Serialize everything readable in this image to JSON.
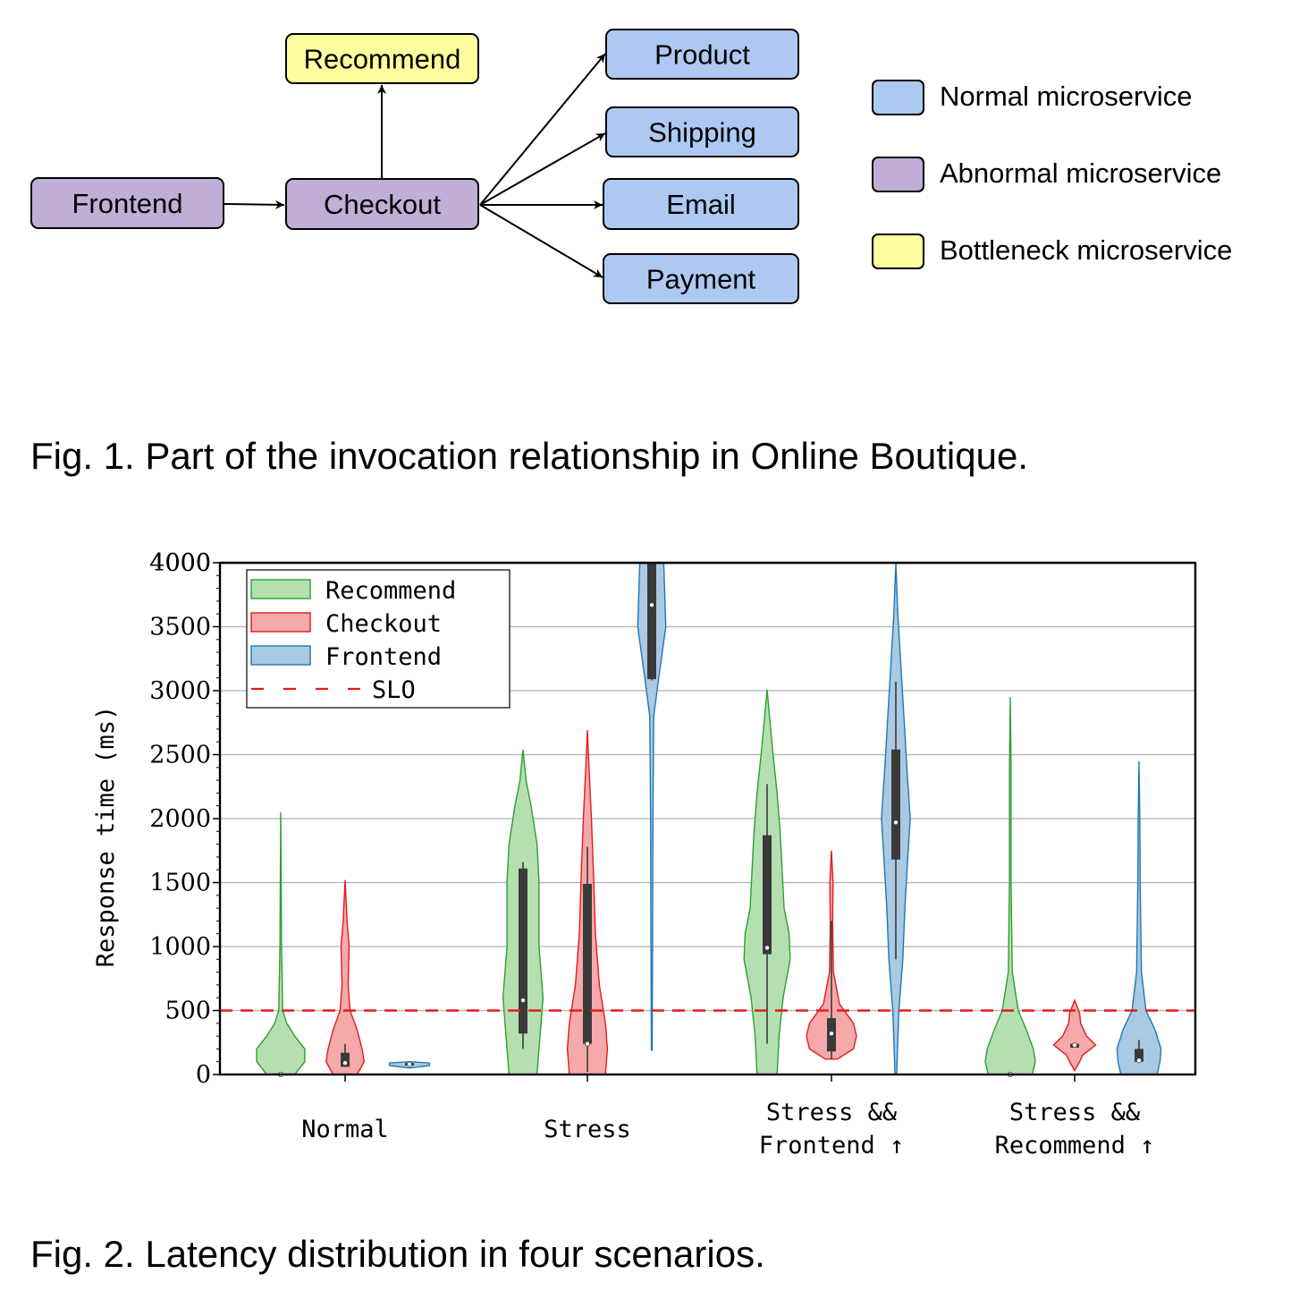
{
  "figure1": {
    "nodes": [
      {
        "id": "frontend",
        "label": "Frontend",
        "kind": "abnormal"
      },
      {
        "id": "checkout",
        "label": "Checkout",
        "kind": "abnormal"
      },
      {
        "id": "recommend",
        "label": "Recommend",
        "kind": "bottleneck"
      },
      {
        "id": "product",
        "label": "Product",
        "kind": "normal"
      },
      {
        "id": "shipping",
        "label": "Shipping",
        "kind": "normal"
      },
      {
        "id": "email",
        "label": "Email",
        "kind": "normal"
      },
      {
        "id": "payment",
        "label": "Payment",
        "kind": "normal"
      }
    ],
    "edges": [
      [
        "frontend",
        "checkout"
      ],
      [
        "checkout",
        "recommend"
      ],
      [
        "checkout",
        "product"
      ],
      [
        "checkout",
        "shipping"
      ],
      [
        "checkout",
        "email"
      ],
      [
        "checkout",
        "payment"
      ]
    ],
    "legend": [
      {
        "label": "Normal microservice",
        "kind": "normal"
      },
      {
        "label": "Abnormal microservice",
        "kind": "abnormal"
      },
      {
        "label": "Bottleneck microservice",
        "kind": "bottleneck"
      }
    ],
    "colors": {
      "normal": "#adc9f1",
      "abnormal": "#c0aed6",
      "bottleneck": "#fefe9e"
    },
    "caption": "Fig. 1. Part of the invocation relationship in Online Boutique."
  },
  "figure2": {
    "caption": "Fig. 2. Latency distribution in four scenarios.",
    "chart_data": {
      "type": "violin",
      "title": "",
      "xlabel": "",
      "ylabel": "Response time (ms)",
      "ylim": [
        0,
        4000
      ],
      "yticks": [
        0,
        500,
        1000,
        1500,
        2000,
        2500,
        3000,
        3500,
        4000
      ],
      "grid": "horizontal",
      "legend_position": "top-left",
      "categories": [
        "Normal",
        "Stress",
        "Stress && Frontend ↑",
        "Stress && Recommend ↑"
      ],
      "category_lines": [
        [
          "Normal"
        ],
        [
          "Stress"
        ],
        [
          "Stress &&",
          "Frontend ↑"
        ],
        [
          "Stress &&",
          "Recommend ↑"
        ]
      ],
      "slo": {
        "label": "SLO",
        "value": 500,
        "color": "#e41a1c"
      },
      "series": [
        {
          "name": "Recommend",
          "stroke": "#2ca02c",
          "fill": "#b5dfb0",
          "stats": [
            {
              "min": 0,
              "max": 2050,
              "q1": 0,
              "q3": 0,
              "median": 0,
              "density": [
                [
                  0,
                  70
                ],
                [
                  100,
                  120
                ],
                [
                  200,
                  120
                ],
                [
                  300,
                  70
                ],
                [
                  400,
                  30
                ],
                [
                  500,
                  10
                ],
                [
                  1000,
                  4
                ],
                [
                  2050,
                  0
                ]
              ]
            },
            {
              "min": 0,
              "max": 2540,
              "q1": 320,
              "q3": 1610,
              "median": 580,
              "wlo": 200,
              "whi": 1660,
              "density": [
                [
                  0,
                  70
                ],
                [
                  300,
                  85
                ],
                [
                  600,
                  100
                ],
                [
                  1000,
                  80
                ],
                [
                  1500,
                  80
                ],
                [
                  1800,
                  70
                ],
                [
                  2100,
                  40
                ],
                [
                  2300,
                  15
                ],
                [
                  2540,
                  0
                ]
              ]
            },
            {
              "min": 0,
              "max": 3010,
              "q1": 940,
              "q3": 1870,
              "median": 990,
              "wlo": 240,
              "whi": 2270,
              "density": [
                [
                  0,
                  50
                ],
                [
                  300,
                  60
                ],
                [
                  600,
                  80
                ],
                [
                  900,
                  115
                ],
                [
                  1100,
                  110
                ],
                [
                  1300,
                  85
                ],
                [
                  1600,
                  75
                ],
                [
                  1900,
                  65
                ],
                [
                  2200,
                  50
                ],
                [
                  2500,
                  30
                ],
                [
                  2800,
                  12
                ],
                [
                  3010,
                  0
                ]
              ]
            },
            {
              "min": 0,
              "max": 2950,
              "q1": 0,
              "q3": 0,
              "median": 0,
              "density": [
                [
                  0,
                  110
                ],
                [
                  100,
                  125
                ],
                [
                  200,
                  115
                ],
                [
                  350,
                  80
                ],
                [
                  500,
                  40
                ],
                [
                  800,
                  10
                ],
                [
                  1500,
                  4
                ],
                [
                  2400,
                  4
                ],
                [
                  2950,
                  0
                ]
              ]
            }
          ]
        },
        {
          "name": "Checkout",
          "stroke": "#e41a1c",
          "fill": "#f5a9ab",
          "stats": [
            {
              "min": 0,
              "max": 1520,
              "q1": 60,
              "q3": 170,
              "median": 90,
              "wlo": 60,
              "whi": 240,
              "density": [
                [
                  0,
                  60
                ],
                [
                  100,
                  95
                ],
                [
                  200,
                  85
                ],
                [
                  350,
                  60
                ],
                [
                  500,
                  25
                ],
                [
                  700,
                  15
                ],
                [
                  1000,
                  20
                ],
                [
                  1200,
                  10
                ],
                [
                  1520,
                  0
                ]
              ]
            },
            {
              "min": 0,
              "max": 2690,
              "q1": 240,
              "q3": 1490,
              "median": 240,
              "wlo": 20,
              "whi": 1780,
              "density": [
                [
                  0,
                  90
                ],
                [
                  200,
                  100
                ],
                [
                  400,
                  90
                ],
                [
                  700,
                  60
                ],
                [
                  1100,
                  40
                ],
                [
                  1600,
                  30
                ],
                [
                  2000,
                  20
                ],
                [
                  2400,
                  8
                ],
                [
                  2690,
                  0
                ]
              ]
            },
            {
              "min": 120,
              "max": 1750,
              "q1": 180,
              "q3": 440,
              "median": 320,
              "wlo": 120,
              "whi": 1200,
              "density": [
                [
                  120,
                  30
                ],
                [
                  200,
                  110
                ],
                [
                  300,
                  125
                ],
                [
                  400,
                  110
                ],
                [
                  550,
                  40
                ],
                [
                  800,
                  10
                ],
                [
                  1200,
                  6
                ],
                [
                  1500,
                  8
                ],
                [
                  1750,
                  0
                ]
              ]
            },
            {
              "min": 30,
              "max": 580,
              "q1": 210,
              "q3": 240,
              "median": 230,
              "wlo": 210,
              "whi": 240,
              "density": [
                [
                  30,
                  0
                ],
                [
                  100,
                  25
                ],
                [
                  150,
                  40
                ],
                [
                  230,
                  105
                ],
                [
                  300,
                  60
                ],
                [
                  400,
                  30
                ],
                [
                  480,
                  25
                ],
                [
                  580,
                  0
                ]
              ]
            }
          ]
        },
        {
          "name": "Frontend",
          "stroke": "#1f77b4",
          "fill": "#aac9e2",
          "stats": [
            {
              "min": 50,
              "max": 100,
              "q1": 70,
              "q3": 90,
              "median": 80,
              "density": [
                [
                  50,
                  0
                ],
                [
                  70,
                  100
                ],
                [
                  90,
                  100
                ],
                [
                  100,
                  0
                ]
              ]
            },
            {
              "min": 190,
              "max": 4000,
              "q1": 3090,
              "q3": 4000,
              "median": 3670,
              "wlo": 3080,
              "whi": 4000,
              "density": [
                [
                  190,
                  2
                ],
                [
                  1000,
                  4
                ],
                [
                  2000,
                  6
                ],
                [
                  2800,
                  10
                ],
                [
                  3100,
                  35
                ],
                [
                  3500,
                  70
                ],
                [
                  4000,
                  60
                ]
              ]
            },
            {
              "min": 0,
              "max": 4000,
              "q1": 1680,
              "q3": 2540,
              "median": 1970,
              "wlo": 900,
              "whi": 3070,
              "density": [
                [
                  0,
                  4
                ],
                [
                  500,
                  15
                ],
                [
                  900,
                  35
                ],
                [
                  1300,
                  45
                ],
                [
                  1700,
                  60
                ],
                [
                  2000,
                  72
                ],
                [
                  2400,
                  55
                ],
                [
                  2800,
                  40
                ],
                [
                  3200,
                  25
                ],
                [
                  3600,
                  10
                ],
                [
                  4000,
                  0
                ]
              ]
            },
            {
              "min": 0,
              "max": 2450,
              "q1": 100,
              "q3": 200,
              "median": 110,
              "wlo": 100,
              "whi": 270,
              "density": [
                [
                  0,
                  90
                ],
                [
                  100,
                  105
                ],
                [
                  200,
                  110
                ],
                [
                  350,
                  80
                ],
                [
                  500,
                  35
                ],
                [
                  800,
                  12
                ],
                [
                  1500,
                  6
                ],
                [
                  2000,
                  4
                ],
                [
                  2450,
                  0
                ]
              ]
            }
          ]
        }
      ]
    }
  }
}
